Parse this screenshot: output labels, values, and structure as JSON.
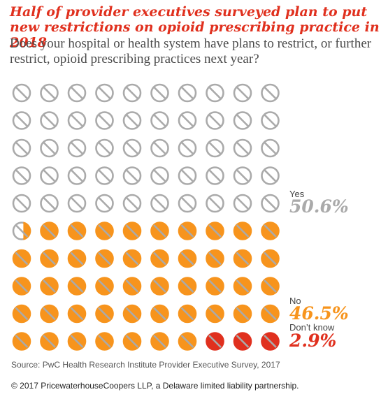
{
  "title": "Half of provider executives surveyed plan to put new restrictions on opioid prescribing practice in 2018",
  "subtitle": "Does your hospital or health system have plans to restrict, or further restrict, opioid prescribing practices next year?",
  "source": "Source: PwC Health Research Institute Provider Executive Survey, 2017",
  "copyright": "© 2017 PricewaterhouseCoopers LLP, a Delaware limited liability partnership.",
  "colors": {
    "yes": "#aaaaaa",
    "no": "#f7941d",
    "dont_know": "#e0301e",
    "symbol_fill": "#ffffff",
    "slash": "#aaaaaa"
  },
  "chart_data": {
    "type": "waffle",
    "title": "Half of provider executives surveyed plan to put new restrictions on opioid prescribing practice in 2018",
    "subtitle": "Does your hospital or health system have plans to restrict, or further restrict, opioid prescribing practices next year?",
    "grid": {
      "rows": 10,
      "cols": 10,
      "total_units": 100
    },
    "series": [
      {
        "name": "Yes",
        "value": 50.6,
        "label": "50.6%",
        "color": "#aaaaaa"
      },
      {
        "name": "No",
        "value": 46.5,
        "label": "46.5%",
        "color": "#f7941d"
      },
      {
        "name": "Don’t know",
        "value": 2.9,
        "label": "2.9%",
        "color": "#e0301e"
      }
    ],
    "fill_order": "Yes fills from top-left by rows; Don’t know fills from bottom-right; No fills the remainder"
  }
}
